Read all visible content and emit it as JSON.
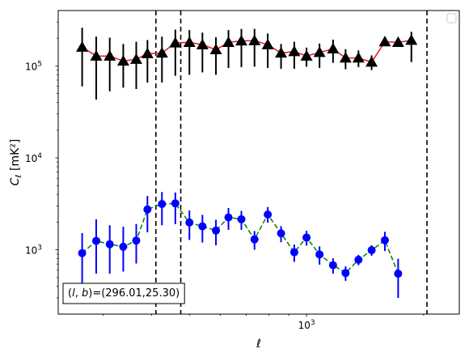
{
  "chart_data": {
    "type": "scatter",
    "title": "",
    "xlabel": "ℓ",
    "ylabel": "C_ℓ  [mK²]",
    "xscale": "log",
    "yscale": "log",
    "xlim": [
      230,
      2470
    ],
    "ylim": [
      200,
      400000
    ],
    "grid": false,
    "legend": "top-right (empty box)",
    "x_tick_labels": [
      {
        "base": "10",
        "exp": "3",
        "value": 1000
      }
    ],
    "y_tick_labels": [
      {
        "base": "10",
        "exp": "3",
        "value": 1000
      },
      {
        "base": "10",
        "exp": "4",
        "value": 10000
      },
      {
        "base": "10",
        "exp": "5",
        "value": 100000
      }
    ],
    "vlines": [
      410,
      475,
      2040
    ],
    "annotation": "(l, b)=(296.01,25.30)",
    "annotation_parts": {
      "open": "(",
      "l": "l",
      "comma": ", ",
      "b": "b",
      "close": ")",
      "value": "=(296.01,25.30)"
    },
    "series": [
      {
        "marker": "triangle",
        "marker_color": "#000000",
        "line_color": "#e41a1c",
        "line_style": "solid",
        "errorbar_color": "#000000",
        "x": [
          265,
          288,
          312,
          338,
          365,
          390,
          425,
          460,
          500,
          540,
          585,
          630,
          680,
          735,
          795,
          860,
          930,
          1000,
          1080,
          1170,
          1260,
          1360,
          1470,
          1590,
          1720,
          1860,
          2010,
          2170,
          2340
        ],
        "y": [
          160000,
          128000,
          128000,
          113000,
          118000,
          136000,
          138000,
          178000,
          180000,
          170000,
          150000,
          180000,
          187000,
          188000,
          170000,
          138000,
          143000,
          128000,
          140000,
          153000,
          122000,
          122000,
          110000,
          183000,
          180000,
          190000,
          0,
          0,
          0
        ],
        "err_low": [
          100000,
          85000,
          75000,
          55000,
          62000,
          70000,
          72000,
          100000,
          100000,
          85000,
          70000,
          85000,
          90000,
          90000,
          75000,
          45000,
          50000,
          30000,
          45000,
          45000,
          30000,
          25000,
          20000,
          0,
          0,
          80000,
          0,
          0,
          0
        ],
        "err_high": [
          100000,
          80000,
          75000,
          60000,
          65000,
          55000,
          70000,
          70000,
          65000,
          60000,
          55000,
          65000,
          65000,
          65000,
          55000,
          35000,
          40000,
          30000,
          35000,
          40000,
          30000,
          25000,
          20000,
          0,
          0,
          45000,
          0,
          0,
          0
        ]
      },
      {
        "marker": "circle",
        "marker_color": "#0000ff",
        "line_color": "#008000",
        "line_style": "dashed",
        "errorbar_color": "#0000ff",
        "x": [
          265,
          288,
          312,
          338,
          365,
          390,
          425,
          460,
          500,
          540,
          585,
          630,
          680,
          735,
          795,
          860,
          930,
          1000,
          1080,
          1170,
          1260,
          1360,
          1470,
          1590,
          1720,
          1860,
          2010,
          2170,
          2340
        ],
        "y": [
          920,
          1250,
          1150,
          1080,
          1260,
          2750,
          3150,
          3200,
          1980,
          1800,
          1620,
          2250,
          2150,
          1300,
          2420,
          1510,
          940,
          1360,
          890,
          680,
          560,
          780,
          990,
          1270,
          550,
          0,
          0,
          0,
          0
        ],
        "err_low": [
          550,
          700,
          600,
          500,
          550,
          1200,
          1300,
          1300,
          700,
          600,
          500,
          600,
          500,
          300,
          450,
          300,
          200,
          250,
          200,
          130,
          100,
          100,
          130,
          300,
          250,
          0,
          0,
          0,
          0
        ],
        "err_high": [
          600,
          900,
          700,
          700,
          650,
          1100,
          1100,
          1000,
          700,
          600,
          500,
          600,
          500,
          300,
          500,
          300,
          200,
          250,
          200,
          130,
          100,
          100,
          130,
          300,
          250,
          0,
          0,
          0,
          0
        ]
      }
    ]
  }
}
